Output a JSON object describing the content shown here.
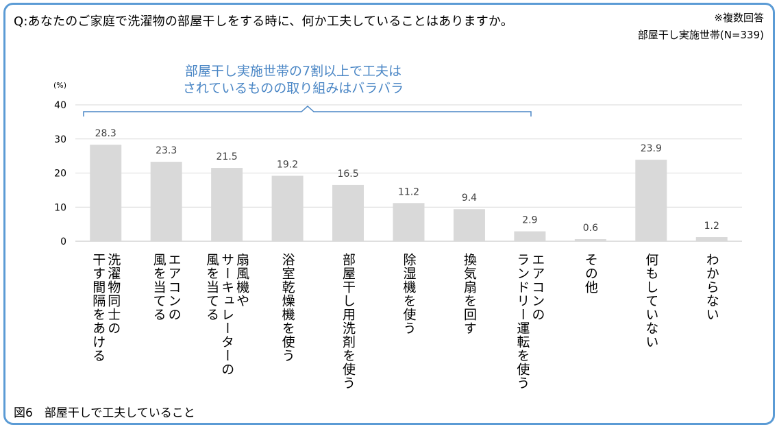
{
  "question": "Q:あなたのご家庭で洗濯物の部屋干しをする時に、何か工夫していることはありますか。",
  "note": "※複数回答",
  "base": "部屋干し実施世帯(N=339)",
  "callout": [
    "部屋干し実施世帯の7割以上で工夫は",
    "されているものの取り組みはバラバラ"
  ],
  "caption": "図6　部屋干しで工夫していること",
  "colors": {
    "bar": "#d9d9d9",
    "frame": "#5b9bd5",
    "callout": "#4a86c5",
    "grid": "#d9d9d9"
  },
  "chart_data": {
    "type": "bar",
    "ylabel": "(%)",
    "ylim": [
      0,
      40
    ],
    "yticks": [
      0,
      10,
      20,
      30,
      40
    ],
    "categories": [
      "洗濯物同士の干す間隔をあける",
      "エアコンの風を当てる",
      "扇風機やサーキュレーターの風を当てる",
      "浴室乾燥機を使う",
      "部屋干し用洗剤を使う",
      "除湿機を使う",
      "換気扇を回す",
      "エアコンのランドリー運転を使う",
      "その他",
      "何もしていない",
      "わからない"
    ],
    "category_lines": [
      [
        "洗濯物同士の",
        "干す間隔をあける"
      ],
      [
        "エアコンの",
        "風を当てる"
      ],
      [
        "扇風機や",
        "サーキュレーターの",
        "風を当てる"
      ],
      [
        "浴室乾燥機を使う"
      ],
      [
        "部屋干し用洗剤を使う"
      ],
      [
        "除湿機を使う"
      ],
      [
        "換気扇を回す"
      ],
      [
        "エアコンの",
        "ランドリー運転を使う"
      ],
      [
        "その他"
      ],
      [
        "何もしていない"
      ],
      [
        "わからない"
      ]
    ],
    "values": [
      28.3,
      23.3,
      21.5,
      19.2,
      16.5,
      11.2,
      9.4,
      2.9,
      0.6,
      23.9,
      1.2
    ],
    "value_labels": [
      "28.3",
      "23.3",
      "21.5",
      "19.2",
      "16.5",
      "11.2",
      "9.4",
      "2.9",
      "0.6",
      "23.9",
      "1.2"
    ],
    "grid": true,
    "legend": "none"
  }
}
